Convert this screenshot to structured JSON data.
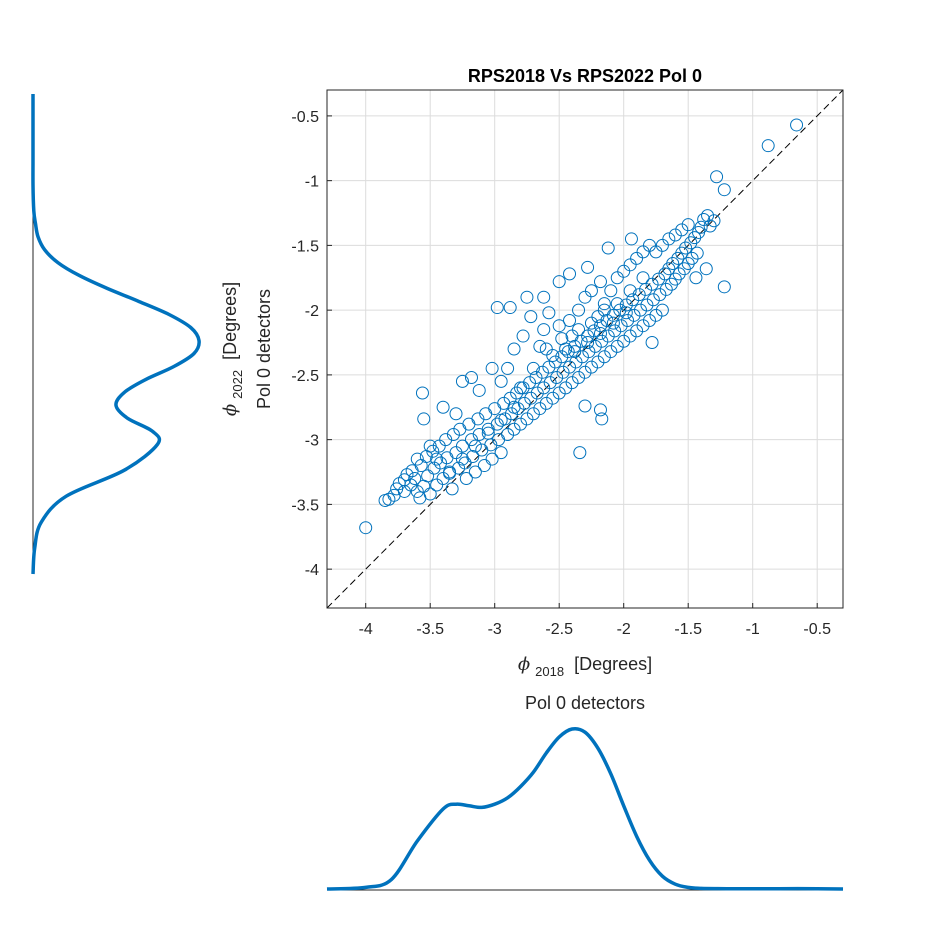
{
  "chart_data": [
    {
      "type": "scatter",
      "title": "RPS2018 Vs RPS2022 Pol 0",
      "xlabel": {
        "symbol": "ϕ",
        "subscript": "2018",
        "unit": "[Degrees]"
      },
      "ylabel": {
        "line1_symbol": "ϕ",
        "line1_subscript": "2022",
        "line1_unit": "[Degrees]",
        "line2": "Pol 0 detectors"
      },
      "xlim": [
        -4.3,
        -0.3
      ],
      "ylim": [
        -4.3,
        -0.3
      ],
      "xticks": [
        -4,
        -3.5,
        -3,
        -2.5,
        -2,
        -1.5,
        -1,
        -0.5
      ],
      "yticks": [
        -0.5,
        -1,
        -1.5,
        -2,
        -2.5,
        -3,
        -3.5,
        -4
      ],
      "xtick_labels": [
        "-4",
        "-3.5",
        "-3",
        "-2.5",
        "-2",
        "-1.5",
        "-1",
        "-0.5"
      ],
      "ytick_labels": [
        "-0.5",
        "-1",
        "-1.5",
        "-2",
        "-2.5",
        "-3",
        "-3.5",
        "-4"
      ],
      "grid": true,
      "marker": "open-circle",
      "color": "#0072BD",
      "reference_line": {
        "style": "dashed",
        "color": "#000000",
        "x": [
          -4.3,
          -0.3
        ],
        "y": [
          -4.3,
          -0.3
        ]
      },
      "points": [
        [
          -4.0,
          -3.68
        ],
        [
          -3.85,
          -3.47
        ],
        [
          -3.82,
          -3.46
        ],
        [
          -3.78,
          -3.43
        ],
        [
          -3.76,
          -3.38
        ],
        [
          -3.74,
          -3.34
        ],
        [
          -3.7,
          -3.31
        ],
        [
          -3.68,
          -3.27
        ],
        [
          -3.64,
          -3.24
        ],
        [
          -3.62,
          -3.3
        ],
        [
          -3.6,
          -3.4
        ],
        [
          -3.58,
          -3.45
        ],
        [
          -3.57,
          -3.2
        ],
        [
          -3.55,
          -3.36
        ],
        [
          -3.53,
          -3.13
        ],
        [
          -3.52,
          -3.28
        ],
        [
          -3.5,
          -3.42
        ],
        [
          -3.48,
          -3.09
        ],
        [
          -3.47,
          -3.22
        ],
        [
          -3.45,
          -3.35
        ],
        [
          -3.43,
          -3.05
        ],
        [
          -3.42,
          -3.18
        ],
        [
          -3.4,
          -3.3
        ],
        [
          -3.38,
          -3.0
        ],
        [
          -3.37,
          -3.14
        ],
        [
          -3.35,
          -3.26
        ],
        [
          -3.33,
          -3.38
        ],
        [
          -3.32,
          -2.96
        ],
        [
          -3.3,
          -3.1
        ],
        [
          -3.28,
          -3.22
        ],
        [
          -3.27,
          -2.92
        ],
        [
          -3.25,
          -3.05
        ],
        [
          -3.23,
          -3.18
        ],
        [
          -3.22,
          -3.3
        ],
        [
          -3.2,
          -2.88
        ],
        [
          -3.18,
          -3.0
        ],
        [
          -3.17,
          -3.13
        ],
        [
          -3.15,
          -3.25
        ],
        [
          -3.13,
          -2.84
        ],
        [
          -3.12,
          -2.96
        ],
        [
          -3.1,
          -3.08
        ],
        [
          -3.08,
          -3.2
        ],
        [
          -3.07,
          -2.8
        ],
        [
          -3.05,
          -2.92
        ],
        [
          -3.03,
          -3.04
        ],
        [
          -3.02,
          -3.15
        ],
        [
          -3.0,
          -2.76
        ],
        [
          -2.98,
          -2.88
        ],
        [
          -2.97,
          -3.0
        ],
        [
          -2.95,
          -3.1
        ],
        [
          -2.93,
          -2.72
        ],
        [
          -2.92,
          -2.84
        ],
        [
          -2.9,
          -2.96
        ],
        [
          -2.88,
          -2.68
        ],
        [
          -2.87,
          -2.8
        ],
        [
          -2.85,
          -2.92
        ],
        [
          -2.83,
          -2.64
        ],
        [
          -2.82,
          -2.76
        ],
        [
          -2.8,
          -2.88
        ],
        [
          -2.78,
          -2.6
        ],
        [
          -2.77,
          -2.72
        ],
        [
          -2.75,
          -2.84
        ],
        [
          -2.73,
          -2.56
        ],
        [
          -2.72,
          -2.68
        ],
        [
          -2.7,
          -2.8
        ],
        [
          -2.68,
          -2.52
        ],
        [
          -2.67,
          -2.64
        ],
        [
          -2.65,
          -2.76
        ],
        [
          -2.63,
          -2.48
        ],
        [
          -2.62,
          -2.6
        ],
        [
          -2.6,
          -2.72
        ],
        [
          -2.58,
          -2.44
        ],
        [
          -2.57,
          -2.56
        ],
        [
          -2.55,
          -2.68
        ],
        [
          -2.53,
          -2.4
        ],
        [
          -2.52,
          -2.52
        ],
        [
          -2.5,
          -2.64
        ],
        [
          -2.48,
          -2.36
        ],
        [
          -2.47,
          -2.48
        ],
        [
          -2.45,
          -2.6
        ],
        [
          -2.43,
          -2.32
        ],
        [
          -2.42,
          -2.44
        ],
        [
          -2.4,
          -2.56
        ],
        [
          -2.38,
          -2.28
        ],
        [
          -2.37,
          -2.4
        ],
        [
          -2.35,
          -2.52
        ],
        [
          -2.33,
          -2.24
        ],
        [
          -2.32,
          -2.36
        ],
        [
          -2.3,
          -2.48
        ],
        [
          -2.28,
          -2.2
        ],
        [
          -2.27,
          -2.32
        ],
        [
          -2.25,
          -2.44
        ],
        [
          -2.23,
          -2.16
        ],
        [
          -2.22,
          -2.28
        ],
        [
          -2.2,
          -2.4
        ],
        [
          -2.18,
          -2.12
        ],
        [
          -2.17,
          -2.24
        ],
        [
          -2.15,
          -2.36
        ],
        [
          -2.13,
          -2.08
        ],
        [
          -2.12,
          -2.2
        ],
        [
          -2.1,
          -2.32
        ],
        [
          -2.08,
          -2.04
        ],
        [
          -2.07,
          -2.16
        ],
        [
          -2.05,
          -2.28
        ],
        [
          -2.03,
          -2.0
        ],
        [
          -2.02,
          -2.12
        ],
        [
          -2.0,
          -2.24
        ],
        [
          -1.98,
          -1.96
        ],
        [
          -1.97,
          -2.08
        ],
        [
          -1.95,
          -2.2
        ],
        [
          -1.93,
          -1.92
        ],
        [
          -1.92,
          -2.04
        ],
        [
          -1.9,
          -2.16
        ],
        [
          -1.88,
          -1.88
        ],
        [
          -1.87,
          -2.0
        ],
        [
          -1.85,
          -2.12
        ],
        [
          -1.83,
          -1.84
        ],
        [
          -1.82,
          -1.96
        ],
        [
          -1.8,
          -2.08
        ],
        [
          -1.78,
          -1.8
        ],
        [
          -1.77,
          -1.92
        ],
        [
          -1.75,
          -2.04
        ],
        [
          -1.73,
          -1.76
        ],
        [
          -1.72,
          -1.88
        ],
        [
          -1.7,
          -2.0
        ],
        [
          -1.68,
          -1.72
        ],
        [
          -1.67,
          -1.84
        ],
        [
          -1.65,
          -1.68
        ],
        [
          -1.63,
          -1.8
        ],
        [
          -1.62,
          -1.64
        ],
        [
          -1.6,
          -1.76
        ],
        [
          -1.58,
          -1.6
        ],
        [
          -1.57,
          -1.72
        ],
        [
          -1.55,
          -1.56
        ],
        [
          -1.53,
          -1.68
        ],
        [
          -1.52,
          -1.52
        ],
        [
          -1.5,
          -1.64
        ],
        [
          -1.48,
          -1.48
        ],
        [
          -1.47,
          -1.6
        ],
        [
          -1.45,
          -1.44
        ],
        [
          -1.43,
          -1.56
        ],
        [
          -1.42,
          -1.4
        ],
        [
          -1.4,
          -1.36
        ],
        [
          -1.38,
          -1.3
        ],
        [
          -1.35,
          -1.27
        ],
        [
          -1.33,
          -1.35
        ],
        [
          -1.3,
          -1.31
        ],
        [
          -1.28,
          -0.97
        ],
        [
          -1.22,
          -1.07
        ],
        [
          -0.88,
          -0.73
        ],
        [
          -0.66,
          -0.57
        ],
        [
          -1.22,
          -1.82
        ],
        [
          -1.36,
          -1.68
        ],
        [
          -1.44,
          -1.75
        ],
        [
          -1.78,
          -2.25
        ],
        [
          -1.94,
          -1.45
        ],
        [
          -2.12,
          -1.52
        ],
        [
          -2.28,
          -1.67
        ],
        [
          -2.42,
          -1.72
        ],
        [
          -2.18,
          -1.78
        ],
        [
          -2.5,
          -1.78
        ],
        [
          -2.62,
          -1.9
        ],
        [
          -2.75,
          -1.9
        ],
        [
          -2.88,
          -1.98
        ],
        [
          -2.98,
          -1.98
        ],
        [
          -2.72,
          -2.05
        ],
        [
          -2.62,
          -2.15
        ],
        [
          -2.5,
          -2.12
        ],
        [
          -2.85,
          -2.3
        ],
        [
          -2.9,
          -2.45
        ],
        [
          -2.78,
          -2.2
        ],
        [
          -2.65,
          -2.28
        ],
        [
          -2.55,
          -2.35
        ],
        [
          -2.3,
          -2.74
        ],
        [
          -2.18,
          -2.77
        ],
        [
          -2.17,
          -2.84
        ],
        [
          -2.34,
          -3.1
        ],
        [
          -3.56,
          -2.64
        ],
        [
          -3.55,
          -2.84
        ],
        [
          -3.4,
          -2.75
        ],
        [
          -3.25,
          -2.55
        ],
        [
          -3.18,
          -2.52
        ],
        [
          -3.02,
          -2.45
        ],
        [
          -3.3,
          -2.8
        ],
        [
          -3.12,
          -2.62
        ],
        [
          -2.95,
          -2.55
        ],
        [
          -2.58,
          -2.02
        ],
        [
          -2.42,
          -2.08
        ],
        [
          -2.35,
          -2.0
        ],
        [
          -2.3,
          -1.9
        ],
        [
          -2.25,
          -1.85
        ],
        [
          -2.4,
          -2.2
        ],
        [
          -2.45,
          -2.3
        ],
        [
          -2.2,
          -2.05
        ],
        [
          -2.15,
          -1.95
        ],
        [
          -2.1,
          -1.85
        ],
        [
          -2.05,
          -1.75
        ],
        [
          -2.0,
          -1.7
        ],
        [
          -1.95,
          -1.65
        ],
        [
          -1.9,
          -1.6
        ],
        [
          -1.85,
          -1.55
        ],
        [
          -1.8,
          -1.5
        ],
        [
          -1.75,
          -1.55
        ],
        [
          -1.7,
          -1.5
        ],
        [
          -1.65,
          -1.45
        ],
        [
          -1.6,
          -1.42
        ],
        [
          -1.55,
          -1.38
        ],
        [
          -1.5,
          -1.34
        ],
        [
          -2.6,
          -2.3
        ],
        [
          -2.7,
          -2.45
        ],
        [
          -2.8,
          -2.6
        ],
        [
          -2.85,
          -2.75
        ],
        [
          -2.95,
          -2.85
        ],
        [
          -3.05,
          -2.95
        ],
        [
          -3.15,
          -3.05
        ],
        [
          -3.25,
          -3.15
        ],
        [
          -3.35,
          -3.25
        ],
        [
          -3.45,
          -3.15
        ],
        [
          -3.5,
          -3.05
        ],
        [
          -3.6,
          -3.15
        ],
        [
          -3.65,
          -3.35
        ],
        [
          -3.7,
          -3.4
        ],
        [
          -2.35,
          -2.15
        ],
        [
          -2.25,
          -2.1
        ],
        [
          -2.15,
          -2.0
        ],
        [
          -2.05,
          -1.95
        ],
        [
          -1.95,
          -1.85
        ],
        [
          -1.85,
          -1.75
        ],
        [
          -2.48,
          -2.22
        ],
        [
          -2.38,
          -2.32
        ],
        [
          -2.28,
          -2.25
        ],
        [
          -2.18,
          -2.18
        ],
        [
          -2.08,
          -2.1
        ],
        [
          -1.98,
          -2.02
        ]
      ]
    },
    {
      "type": "area",
      "title": "Pol 0 detectors",
      "orientation": "vertical-density",
      "y": [
        -4.0,
        -3.8,
        -3.6,
        -3.4,
        -3.2,
        -3.0,
        -2.9,
        -2.8,
        -2.7,
        -2.6,
        -2.5,
        -2.4,
        -2.3,
        -2.2,
        -2.1,
        -2.0,
        -1.9,
        -1.8,
        -1.7,
        -1.6,
        -1.5,
        -1.4,
        -1.3,
        -1.2,
        -1.0,
        -0.8,
        -0.5,
        -0.3
      ],
      "values": [
        0.0,
        0.01,
        0.05,
        0.2,
        0.55,
        0.75,
        0.72,
        0.57,
        0.5,
        0.55,
        0.68,
        0.85,
        0.97,
        1.0,
        0.95,
        0.82,
        0.64,
        0.45,
        0.28,
        0.15,
        0.07,
        0.03,
        0.015,
        0.005,
        0.0,
        0.0,
        0.0,
        0.0
      ],
      "ylim": [
        -4.0,
        -0.3
      ],
      "color": "#0072BD"
    },
    {
      "type": "area",
      "title": "Pol 0 detectors",
      "orientation": "horizontal-density",
      "x": [
        -4.3,
        -4.0,
        -3.8,
        -3.6,
        -3.4,
        -3.3,
        -3.2,
        -3.1,
        -3.0,
        -2.9,
        -2.8,
        -2.7,
        -2.6,
        -2.5,
        -2.4,
        -2.3,
        -2.2,
        -2.1,
        -2.0,
        -1.9,
        -1.8,
        -1.7,
        -1.6,
        -1.5,
        -1.4,
        -1.2,
        -1.0,
        -0.8,
        -0.5,
        -0.3
      ],
      "values": [
        0.0,
        0.01,
        0.06,
        0.3,
        0.5,
        0.53,
        0.52,
        0.51,
        0.53,
        0.57,
        0.64,
        0.73,
        0.85,
        0.95,
        1.0,
        0.98,
        0.88,
        0.72,
        0.52,
        0.33,
        0.18,
        0.08,
        0.03,
        0.01,
        0.004,
        0.002,
        0.001,
        0.002,
        0.002,
        0.0
      ],
      "xlim": [
        -4.3,
        -0.3
      ],
      "color": "#0072BD"
    }
  ]
}
